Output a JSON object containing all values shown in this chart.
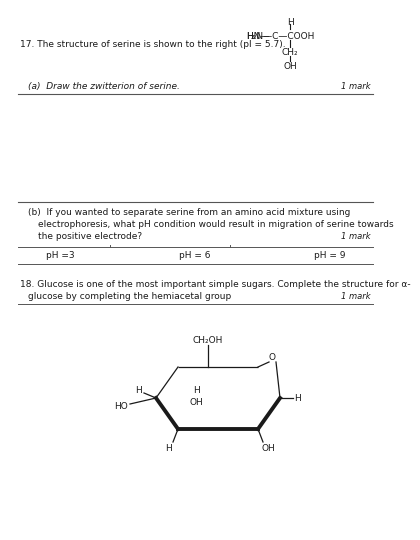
{
  "bg_color": "#ffffff",
  "text_color": "#1a1a1a",
  "q17_text": "17. The structure of serine is shown to the right (pI = 5.7).",
  "q17a_text": "(a)  Draw the zwitterion of serine.",
  "q17a_mark": "1 mark",
  "q17b_line1": "(b)  If you wanted to separate serine from an amino acid mixture using",
  "q17b_line2": "electrophoresis, what pH condition would result in migration of serine towards",
  "q17b_line3": "the positive electrode?",
  "q17b_mark": "1 mark",
  "ph_options": [
    "pH =3",
    "pH = 6",
    "pH = 9"
  ],
  "q18_line1": "18. Glucose is one of the most important simple sugars. Complete the structure for α-",
  "q18_line2": "glucose by completing the hemiacetal group",
  "q18_mark": "1 mark",
  "font_size": 6.5,
  "font_size_italic": 6.0
}
